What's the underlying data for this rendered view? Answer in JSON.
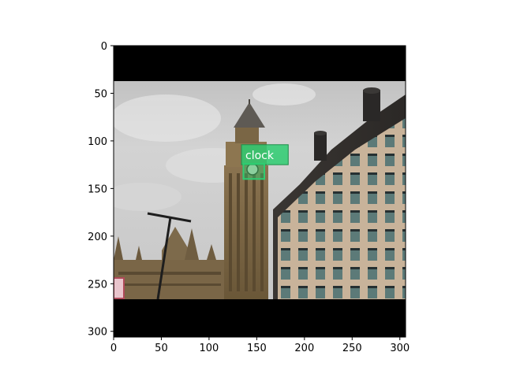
{
  "figure": {
    "image_extent": {
      "x": [
        0,
        306
      ],
      "y": [
        306,
        0
      ]
    },
    "x_ticks": [
      {
        "value": 0,
        "label": "0"
      },
      {
        "value": 50,
        "label": "50"
      },
      {
        "value": 100,
        "label": "100"
      },
      {
        "value": 150,
        "label": "150"
      },
      {
        "value": 200,
        "label": "200"
      },
      {
        "value": 250,
        "label": "250"
      },
      {
        "value": 300,
        "label": "300"
      }
    ],
    "y_ticks": [
      {
        "value": 0,
        "label": "0"
      },
      {
        "value": 50,
        "label": "50"
      },
      {
        "value": 100,
        "label": "100"
      },
      {
        "value": 150,
        "label": "150"
      },
      {
        "value": 200,
        "label": "200"
      },
      {
        "value": 250,
        "label": "250"
      },
      {
        "value": 300,
        "label": "300"
      }
    ],
    "letterbox": {
      "top_bar_y": [
        0,
        37
      ],
      "bottom_bar_y": [
        267,
        306
      ],
      "color": "#000000"
    },
    "detections": [
      {
        "label": "clock",
        "box": {
          "x0": 136,
          "y0": 124,
          "x1": 158,
          "y1": 140
        },
        "label_box": {
          "x0": 134,
          "y0": 104,
          "x1": 183,
          "y1": 125
        },
        "color": "#2ecc71"
      }
    ]
  }
}
